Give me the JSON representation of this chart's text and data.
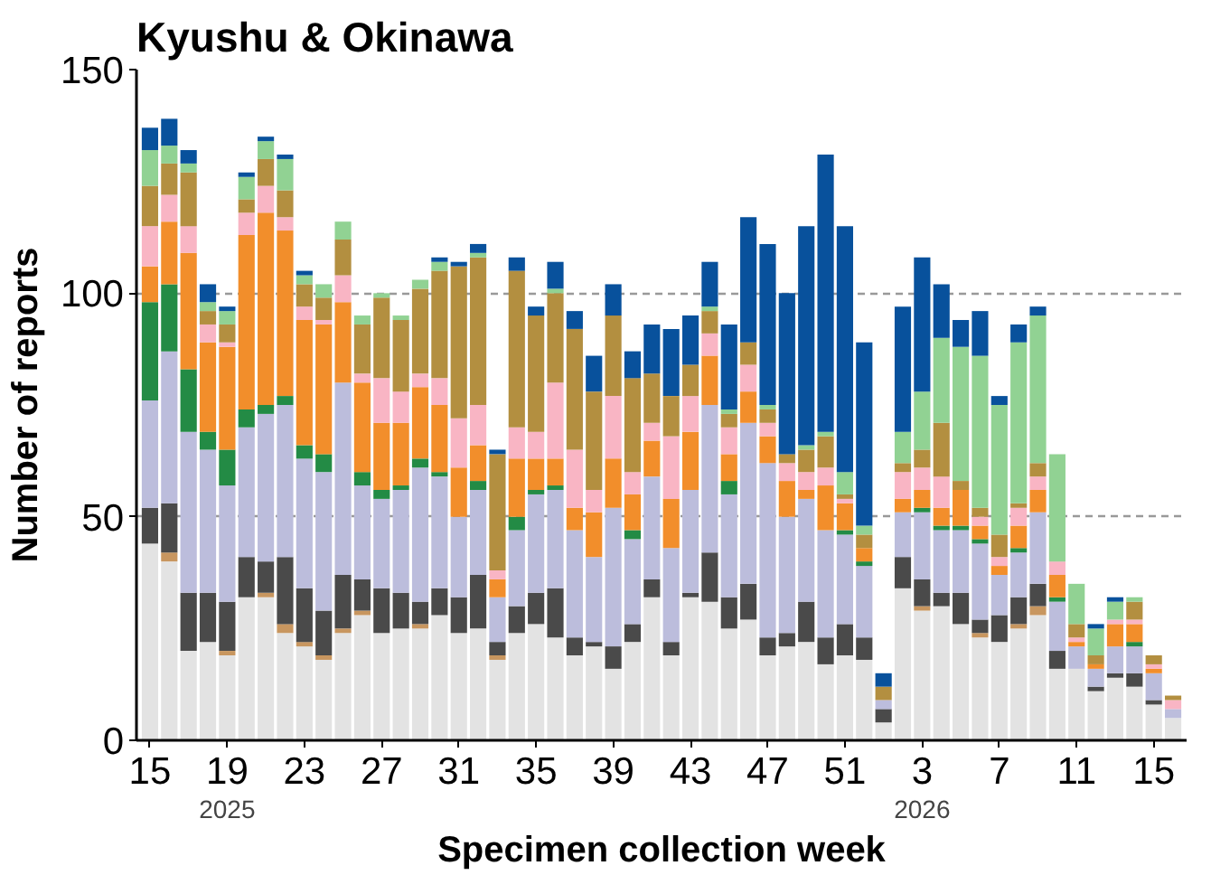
{
  "chart_data": {
    "type": "bar",
    "stacked": true,
    "title": "Kyushu & Okinawa",
    "xlabel": "Specimen collection week",
    "ylabel": "Number of reports",
    "categories": [
      "15",
      null,
      null,
      null,
      "19",
      null,
      null,
      null,
      "23",
      null,
      null,
      null,
      "27",
      null,
      null,
      null,
      "31",
      null,
      null,
      null,
      "35",
      null,
      null,
      null,
      "39",
      null,
      null,
      null,
      "43",
      null,
      null,
      null,
      "47",
      null,
      null,
      null,
      "51",
      null,
      null,
      null,
      "3",
      null,
      null,
      null,
      "7",
      null,
      null,
      null,
      "11",
      null,
      null,
      null,
      "15",
      null
    ],
    "annotations": [
      "2025",
      "2026"
    ],
    "ylim": [
      0,
      150
    ],
    "yticks": [
      0,
      50,
      100,
      150
    ],
    "grid": "y",
    "series": [
      {
        "color": "#e3e3e3",
        "values": [
          44,
          40,
          20,
          22,
          19,
          32,
          32,
          24,
          21,
          18,
          24,
          28,
          24,
          25,
          25,
          28,
          24,
          25,
          18,
          24,
          26,
          23,
          19,
          21,
          16,
          22,
          32,
          19,
          32,
          31,
          25,
          27,
          19,
          21,
          22,
          17,
          19,
          18,
          4,
          34,
          29,
          30,
          26,
          23,
          22,
          25,
          28,
          16,
          16,
          11,
          14,
          12,
          8,
          5
        ]
      },
      {
        "color": "#c8965f",
        "values": [
          0,
          2,
          0,
          0,
          1,
          0,
          1,
          2,
          1,
          1,
          1,
          1,
          0,
          0,
          1,
          0,
          0,
          0,
          1,
          0,
          0,
          0,
          0,
          0,
          0,
          0,
          0,
          0,
          0,
          0,
          0,
          0,
          0,
          0,
          0,
          0,
          0,
          0,
          0,
          0,
          1,
          0,
          0,
          1,
          0,
          1,
          2,
          0,
          0,
          0,
          0,
          0,
          0,
          0
        ]
      },
      {
        "color": "#4a4a4a",
        "values": [
          8,
          11,
          13,
          11,
          11,
          9,
          7,
          15,
          12,
          10,
          12,
          7,
          10,
          8,
          5,
          6,
          8,
          12,
          3,
          6,
          7,
          11,
          4,
          1,
          5,
          4,
          4,
          3,
          1,
          11,
          7,
          8,
          4,
          3,
          9,
          6,
          7,
          5,
          3,
          7,
          6,
          3,
          7,
          3,
          6,
          6,
          5,
          4,
          0,
          1,
          1,
          3,
          1,
          0
        ]
      },
      {
        "color": "#bcbddc",
        "values": [
          24,
          34,
          36,
          32,
          26,
          29,
          33,
          34,
          29,
          31,
          43,
          21,
          20,
          23,
          30,
          25,
          18,
          19,
          10,
          17,
          22,
          22,
          24,
          19,
          31,
          19,
          23,
          21,
          23,
          33,
          23,
          36,
          39,
          26,
          23,
          24,
          20,
          16,
          2,
          10,
          15,
          14,
          14,
          17,
          9,
          10,
          16,
          11,
          5,
          4,
          6,
          6,
          6,
          2
        ]
      },
      {
        "color": "#238b45",
        "values": [
          22,
          15,
          14,
          4,
          8,
          4,
          2,
          2,
          3,
          4,
          0,
          3,
          2,
          1,
          2,
          1,
          0,
          2,
          0,
          3,
          1,
          1,
          0,
          0,
          0,
          2,
          0,
          0,
          0,
          0,
          3,
          0,
          0,
          0,
          0,
          0,
          1,
          1,
          0,
          0,
          1,
          1,
          1,
          1,
          0,
          1,
          0,
          1,
          0,
          0,
          0,
          1,
          0,
          0
        ]
      },
      {
        "color": "#f28e2b",
        "values": [
          8,
          14,
          26,
          20,
          23,
          39,
          43,
          37,
          28,
          29,
          18,
          20,
          15,
          14,
          16,
          15,
          11,
          8,
          4,
          13,
          7,
          6,
          5,
          10,
          11,
          8,
          8,
          11,
          13,
          11,
          6,
          7,
          6,
          8,
          2,
          10,
          6,
          3,
          0,
          3,
          4,
          4,
          8,
          3,
          2,
          5,
          5,
          5,
          1,
          1,
          5,
          4,
          1,
          0
        ]
      },
      {
        "color": "#f9b5c4",
        "values": [
          9,
          6,
          6,
          4,
          1,
          5,
          6,
          3,
          3,
          1,
          6,
          2,
          10,
          7,
          3,
          6,
          11,
          9,
          2,
          7,
          6,
          17,
          13,
          5,
          14,
          5,
          4,
          14,
          8,
          5,
          6,
          6,
          3,
          4,
          4,
          4,
          1,
          0,
          0,
          6,
          5,
          7,
          0,
          2,
          2,
          4,
          3,
          3,
          1,
          0,
          1,
          1,
          1,
          2
        ]
      },
      {
        "color": "#b38f40",
        "values": [
          9,
          7,
          12,
          3,
          4,
          3,
          6,
          6,
          5,
          5,
          8,
          11,
          18,
          16,
          19,
          24,
          34,
          33,
          26,
          35,
          26,
          20,
          27,
          22,
          18,
          21,
          11,
          9,
          7,
          5,
          3,
          5,
          3,
          2,
          5,
          7,
          1,
          3,
          3,
          2,
          4,
          12,
          2,
          2,
          5,
          1,
          3,
          0,
          3,
          2,
          0,
          4,
          2,
          1
        ]
      },
      {
        "color": "#91d293",
        "values": [
          8,
          4,
          2,
          2,
          3,
          5,
          4,
          7,
          2,
          3,
          4,
          2,
          1,
          1,
          2,
          2,
          0,
          1,
          0,
          0,
          0,
          1,
          0,
          0,
          0,
          0,
          0,
          0,
          0,
          1,
          1,
          0,
          1,
          0,
          1,
          1,
          5,
          2,
          0,
          7,
          13,
          19,
          30,
          34,
          29,
          36,
          33,
          24,
          9,
          6,
          4,
          1,
          0,
          0
        ]
      },
      {
        "color": "#08519c",
        "values": [
          5,
          6,
          3,
          4,
          1,
          1,
          1,
          1,
          1,
          0,
          0,
          0,
          0,
          0,
          0,
          1,
          1,
          2,
          1,
          3,
          2,
          6,
          4,
          8,
          7,
          6,
          11,
          15,
          11,
          10,
          19,
          28,
          36,
          36,
          49,
          62,
          55,
          41,
          3,
          28,
          30,
          12,
          6,
          10,
          2,
          4,
          2,
          0,
          0,
          1,
          1,
          0,
          0,
          0
        ]
      }
    ]
  }
}
